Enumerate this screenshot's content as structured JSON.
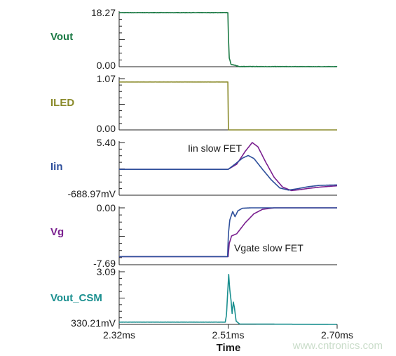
{
  "chart_data": {
    "type": "line",
    "xlabel": "Time",
    "x_ticks": [
      "2.32ms",
      "2.51ms",
      "2.70ms"
    ],
    "x_range_ms": [
      2.32,
      2.7
    ],
    "watermark": "www.cntronics.com",
    "panels": [
      {
        "id": "vout",
        "label": "Vout",
        "color": "#1c7a45",
        "y_top_label": "18.27",
        "y_bottom_label": "0.00",
        "ylim": [
          0,
          18.27
        ],
        "series": [
          {
            "color": "#1c7a45",
            "noise": 0.15,
            "points": [
              [
                2.32,
                18.27
              ],
              [
                2.5095,
                18.27
              ],
              [
                2.5105,
                10
              ],
              [
                2.512,
                3
              ],
              [
                2.515,
                0.8
              ],
              [
                2.53,
                0.05
              ],
              [
                2.7,
                0.0
              ]
            ]
          }
        ]
      },
      {
        "id": "iled",
        "label": "ILED",
        "color": "#8a8a2a",
        "y_top_label": "1.07",
        "y_bottom_label": "0.00",
        "ylim": [
          0,
          1.07
        ],
        "series": [
          {
            "color": "#8a8a2a",
            "noise": 0.035,
            "noise_until": 2.51,
            "points": [
              [
                2.32,
                1.0
              ],
              [
                2.5098,
                1.0
              ],
              [
                2.5102,
                0.0
              ],
              [
                2.7,
                0.0
              ]
            ]
          }
        ]
      },
      {
        "id": "iin",
        "label": "Iin",
        "color": "#2e4f9b",
        "y_top_label": "5.40",
        "y_bottom_label": "-688.97mV",
        "ylim": [
          -0.689,
          5.4
        ],
        "annotation": "Iin slow FET",
        "series": [
          {
            "color": "#7a1f8f",
            "points": [
              [
                2.32,
                2.3
              ],
              [
                2.51,
                2.3
              ],
              [
                2.525,
                2.9
              ],
              [
                2.54,
                4.4
              ],
              [
                2.552,
                5.4
              ],
              [
                2.562,
                4.9
              ],
              [
                2.575,
                3.2
              ],
              [
                2.59,
                1.4
              ],
              [
                2.605,
                0.25
              ],
              [
                2.62,
                -0.15
              ],
              [
                2.635,
                -0.05
              ],
              [
                2.65,
                0.1
              ],
              [
                2.67,
                0.25
              ],
              [
                2.7,
                0.4
              ]
            ]
          },
          {
            "color": "#2e4f9b",
            "points": [
              [
                2.32,
                2.3
              ],
              [
                2.51,
                2.3
              ],
              [
                2.522,
                2.9
              ],
              [
                2.535,
                3.6
              ],
              [
                2.545,
                3.9
              ],
              [
                2.555,
                3.55
              ],
              [
                2.57,
                2.3
              ],
              [
                2.585,
                1.1
              ],
              [
                2.6,
                0.15
              ],
              [
                2.615,
                -0.1
              ],
              [
                2.63,
                0.05
              ],
              [
                2.65,
                0.3
              ],
              [
                2.67,
                0.45
              ],
              [
                2.7,
                0.5
              ]
            ]
          }
        ]
      },
      {
        "id": "vg",
        "label": "Vg",
        "color": "#7a1f8f",
        "y_top_label": "0.00",
        "y_bottom_label": "-7.69",
        "ylim": [
          -7.69,
          0.0
        ],
        "annotation": "Vgate slow FET",
        "series": [
          {
            "color": "#7a1f8f",
            "points": [
              [
                2.32,
                -6.6
              ],
              [
                2.51,
                -6.6
              ],
              [
                2.512,
                -4.8
              ],
              [
                2.516,
                -3.8
              ],
              [
                2.525,
                -3.5
              ],
              [
                2.54,
                -2.0
              ],
              [
                2.555,
                -0.8
              ],
              [
                2.57,
                -0.2
              ],
              [
                2.59,
                0.0
              ],
              [
                2.7,
                0.0
              ]
            ]
          },
          {
            "color": "#2e4f9b",
            "points": [
              [
                2.32,
                -6.6
              ],
              [
                2.509,
                -6.6
              ],
              [
                2.5105,
                -3.5
              ],
              [
                2.513,
                -1.6
              ],
              [
                2.518,
                -0.5
              ],
              [
                2.522,
                -1.2
              ],
              [
                2.527,
                -0.4
              ],
              [
                2.535,
                -0.05
              ],
              [
                2.55,
                0.0
              ],
              [
                2.7,
                0.0
              ]
            ]
          }
        ]
      },
      {
        "id": "vout_csm",
        "label": "Vout_CSM",
        "color": "#1a8f8f",
        "y_top_label": "3.09",
        "y_bottom_label": "330.21mV",
        "ylim": [
          0.33,
          3.09
        ],
        "series": [
          {
            "color": "#1a8f8f",
            "noise": 0.05,
            "noise_until": 2.508,
            "points": [
              [
                2.32,
                0.45
              ],
              [
                2.505,
                0.45
              ],
              [
                2.507,
                0.8
              ],
              [
                2.509,
                1.9
              ],
              [
                2.511,
                2.95
              ],
              [
                2.513,
                2.1
              ],
              [
                2.515,
                1.6
              ],
              [
                2.517,
                0.9
              ],
              [
                2.519,
                1.5
              ],
              [
                2.521,
                1.2
              ],
              [
                2.524,
                0.5
              ],
              [
                2.53,
                0.35
              ],
              [
                2.7,
                0.33
              ]
            ]
          }
        ]
      }
    ]
  }
}
